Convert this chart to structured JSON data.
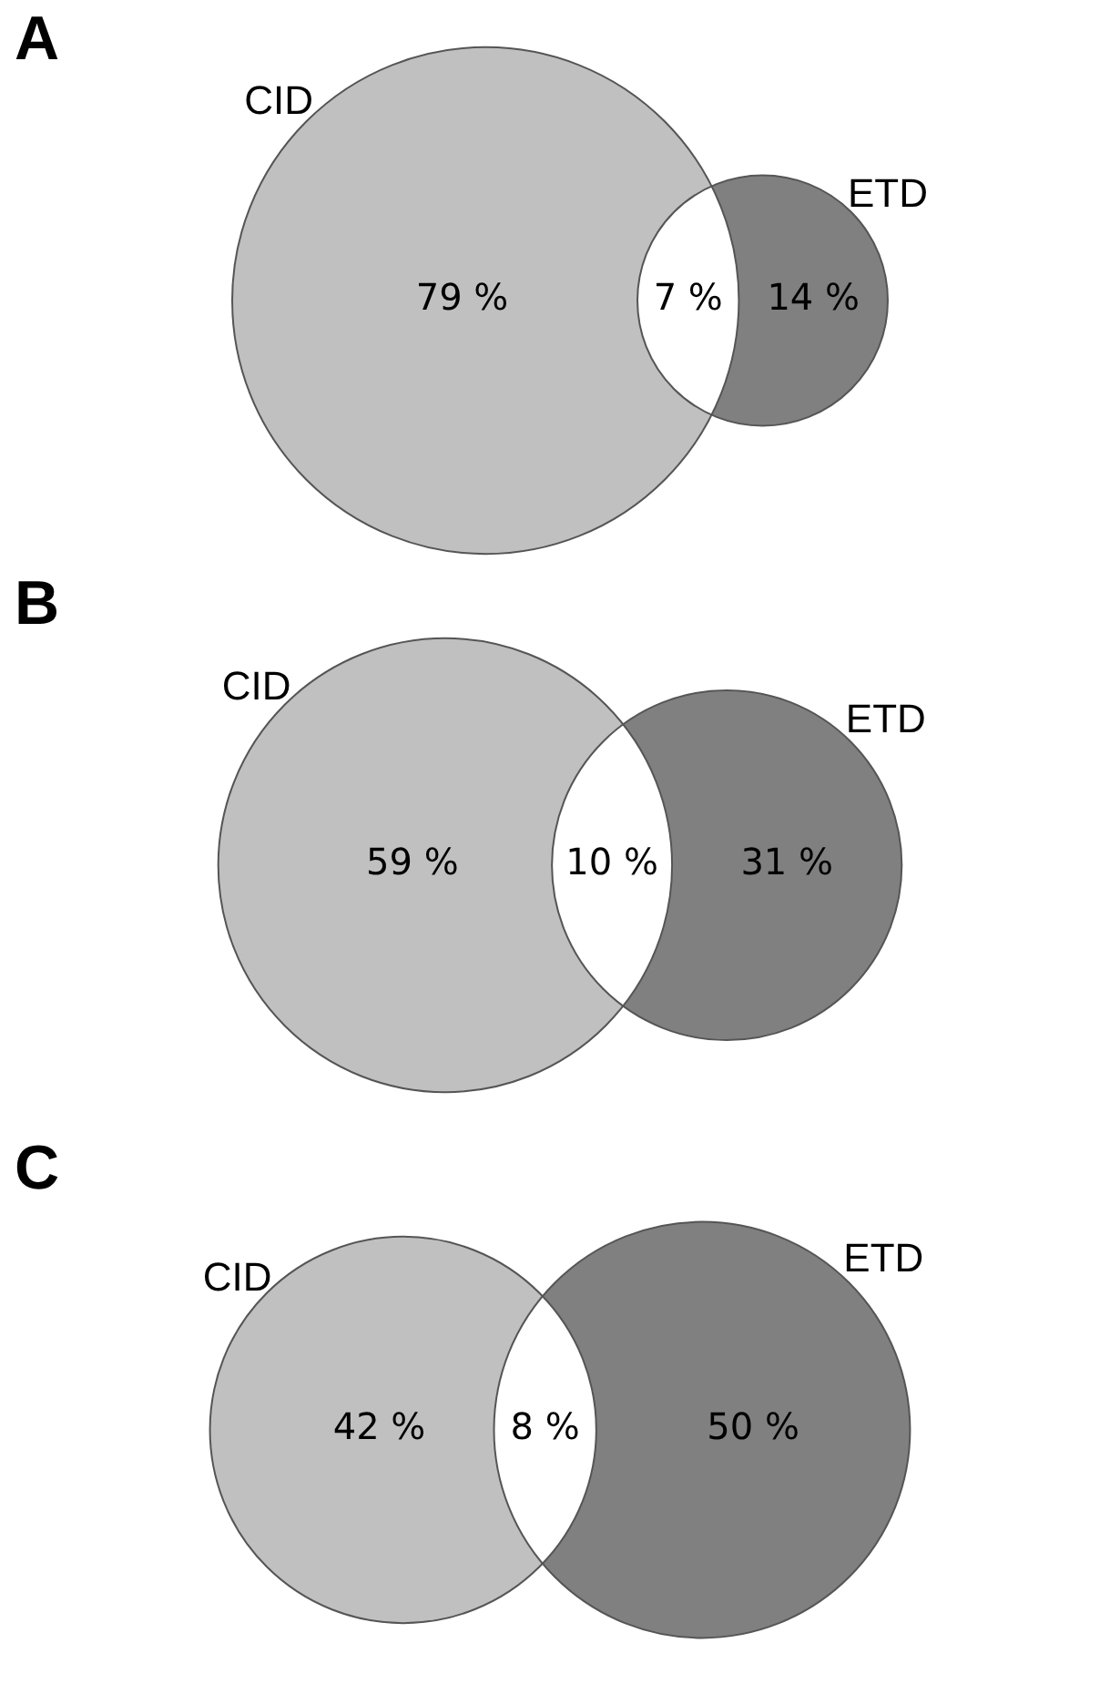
{
  "chart_data": [
    {
      "type": "other",
      "title": "A",
      "categories": [
        "CID",
        null,
        "ETD"
      ],
      "values": [
        79,
        7,
        14
      ],
      "value_labels": [
        "79 %",
        "7 %",
        "14 %"
      ],
      "colors": [
        "#c0c0c0",
        "#ffffff",
        "#808080"
      ]
    },
    {
      "type": "other",
      "title": "B",
      "categories": [
        "CID",
        null,
        "ETD"
      ],
      "values": [
        59,
        10,
        31
      ],
      "value_labels": [
        "59 %",
        "10 %",
        "31 %"
      ],
      "colors": [
        "#c0c0c0",
        "#ffffff",
        "#808080"
      ]
    },
    {
      "type": "other",
      "title": "C",
      "categories": [
        "CID",
        null,
        "ETD"
      ],
      "values": [
        42,
        8,
        50
      ],
      "value_labels": [
        "42 %",
        "8 %",
        "50 %"
      ],
      "colors": [
        "#c0c0c0",
        "#ffffff",
        "#808080"
      ]
    }
  ]
}
